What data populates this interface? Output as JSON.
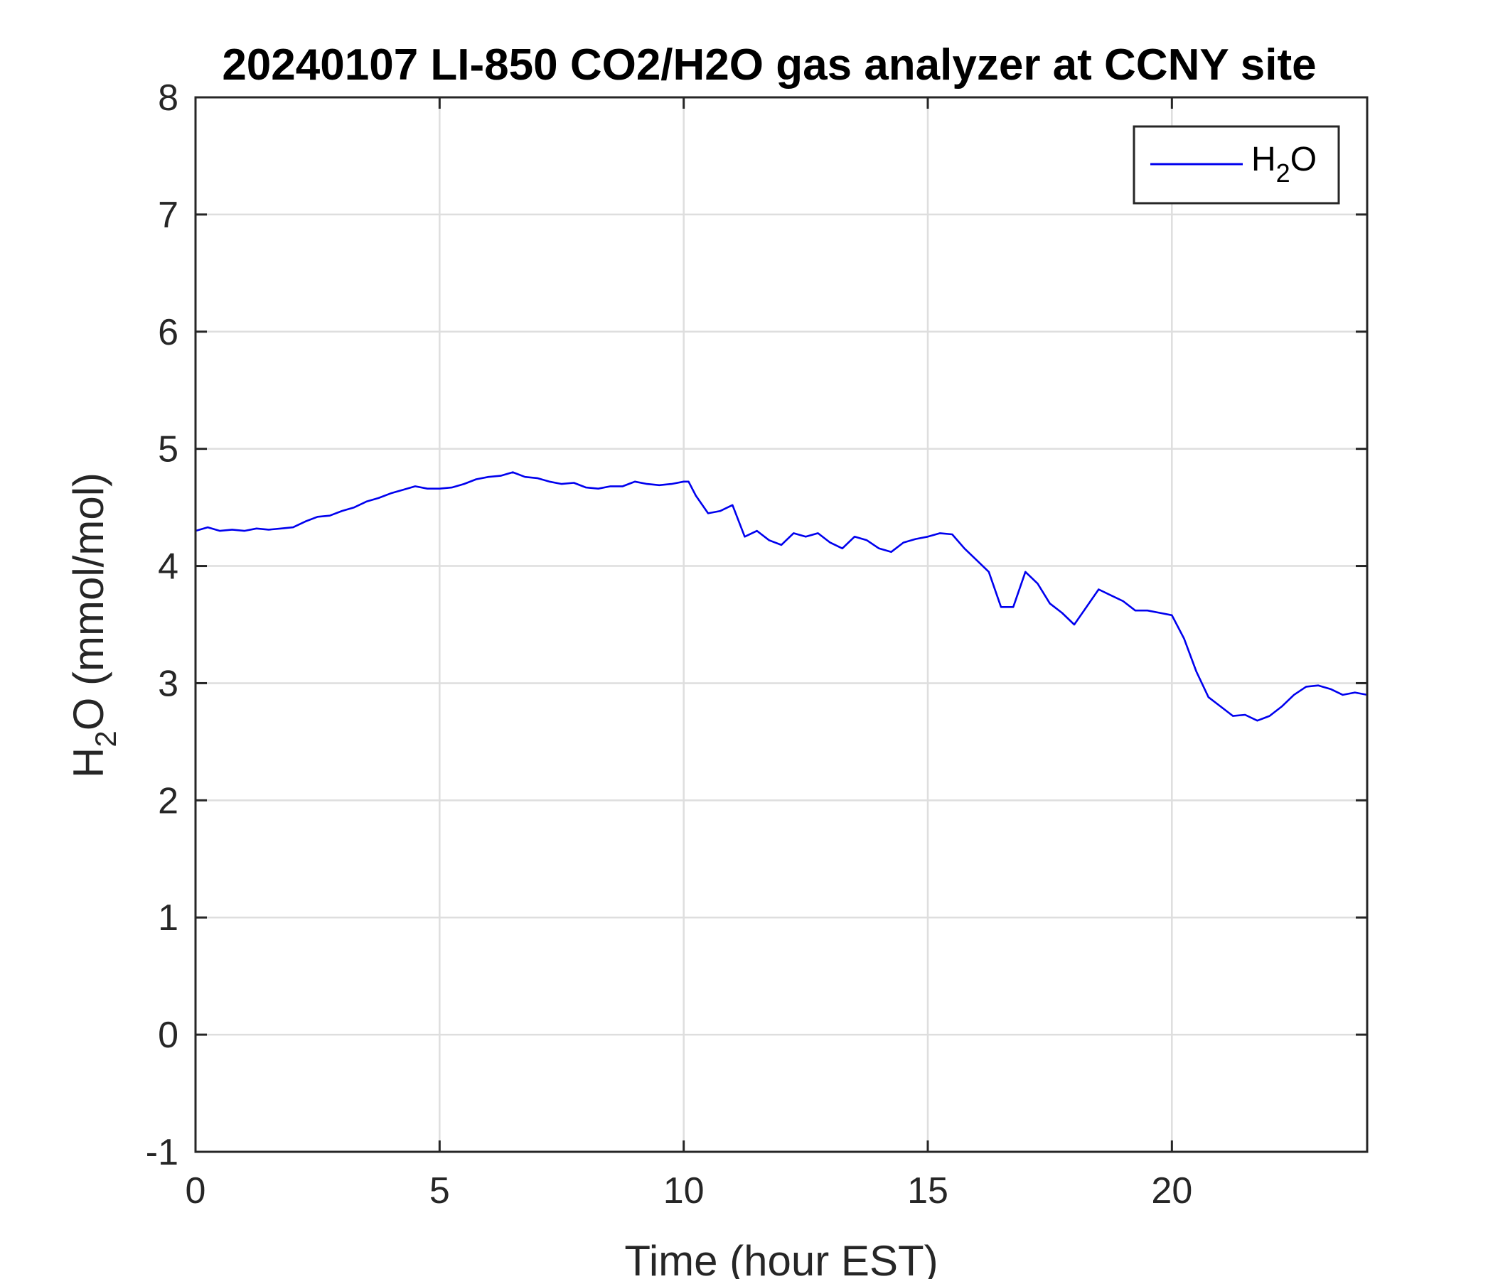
{
  "chart_data": {
    "type": "line",
    "title": "20240107 LI-850 CO2/H2O gas analyzer at CCNY site",
    "xlabel": "Time (hour EST)",
    "ylabel": {
      "prefix": "H",
      "sub": "2",
      "suffix": "O (mmol/mol)"
    },
    "xlim": [
      0,
      24
    ],
    "ylim": [
      -1,
      8
    ],
    "xticks": [
      0,
      5,
      10,
      15,
      20
    ],
    "yticks": [
      -1,
      0,
      1,
      2,
      3,
      4,
      5,
      6,
      7,
      8
    ],
    "grid": true,
    "legend_position": "top-right",
    "line_color": "#0000ee",
    "series": [
      {
        "name": {
          "prefix": "H",
          "sub": "2",
          "suffix": "O"
        },
        "x": [
          0,
          0.25,
          0.5,
          0.75,
          1,
          1.25,
          1.5,
          1.75,
          2,
          2.25,
          2.5,
          2.75,
          3,
          3.25,
          3.5,
          3.75,
          4,
          4.25,
          4.5,
          4.75,
          5,
          5.25,
          5.5,
          5.75,
          6,
          6.25,
          6.5,
          6.75,
          7,
          7.25,
          7.5,
          7.75,
          8,
          8.25,
          8.5,
          8.75,
          9,
          9.25,
          9.5,
          9.75,
          10,
          10.1,
          10.25,
          10.5,
          10.75,
          11,
          11.25,
          11.5,
          11.75,
          12,
          12.25,
          12.5,
          12.75,
          13,
          13.25,
          13.5,
          13.75,
          14,
          14.25,
          14.5,
          14.75,
          15,
          15.25,
          15.5,
          15.75,
          16,
          16.25,
          16.5,
          16.75,
          17,
          17.25,
          17.5,
          17.75,
          18,
          18.25,
          18.5,
          18.75,
          19,
          19.25,
          19.5,
          19.75,
          20,
          20.25,
          20.5,
          20.75,
          21,
          21.25,
          21.5,
          21.75,
          22,
          22.25,
          22.5,
          22.75,
          23,
          23.25,
          23.5,
          23.75,
          24
        ],
        "y": [
          4.3,
          4.33,
          4.3,
          4.31,
          4.3,
          4.32,
          4.31,
          4.32,
          4.33,
          4.38,
          4.42,
          4.43,
          4.47,
          4.5,
          4.55,
          4.58,
          4.62,
          4.65,
          4.68,
          4.66,
          4.66,
          4.67,
          4.7,
          4.74,
          4.76,
          4.77,
          4.8,
          4.76,
          4.75,
          4.72,
          4.7,
          4.71,
          4.67,
          4.66,
          4.68,
          4.68,
          4.72,
          4.7,
          4.69,
          4.7,
          4.72,
          4.72,
          4.6,
          4.45,
          4.47,
          4.52,
          4.25,
          4.3,
          4.22,
          4.18,
          4.28,
          4.25,
          4.28,
          4.2,
          4.15,
          4.25,
          4.22,
          4.15,
          4.12,
          4.2,
          4.23,
          4.25,
          4.28,
          4.27,
          4.15,
          4.05,
          3.95,
          3.65,
          3.65,
          3.95,
          3.85,
          3.68,
          3.6,
          3.5,
          3.65,
          3.8,
          3.75,
          3.7,
          3.62,
          3.62,
          3.6,
          3.58,
          3.38,
          3.1,
          2.88,
          2.8,
          2.72,
          2.73,
          2.68,
          2.72,
          2.8,
          2.9,
          2.97,
          2.98,
          2.95,
          2.9,
          2.92,
          2.9
        ]
      }
    ]
  }
}
